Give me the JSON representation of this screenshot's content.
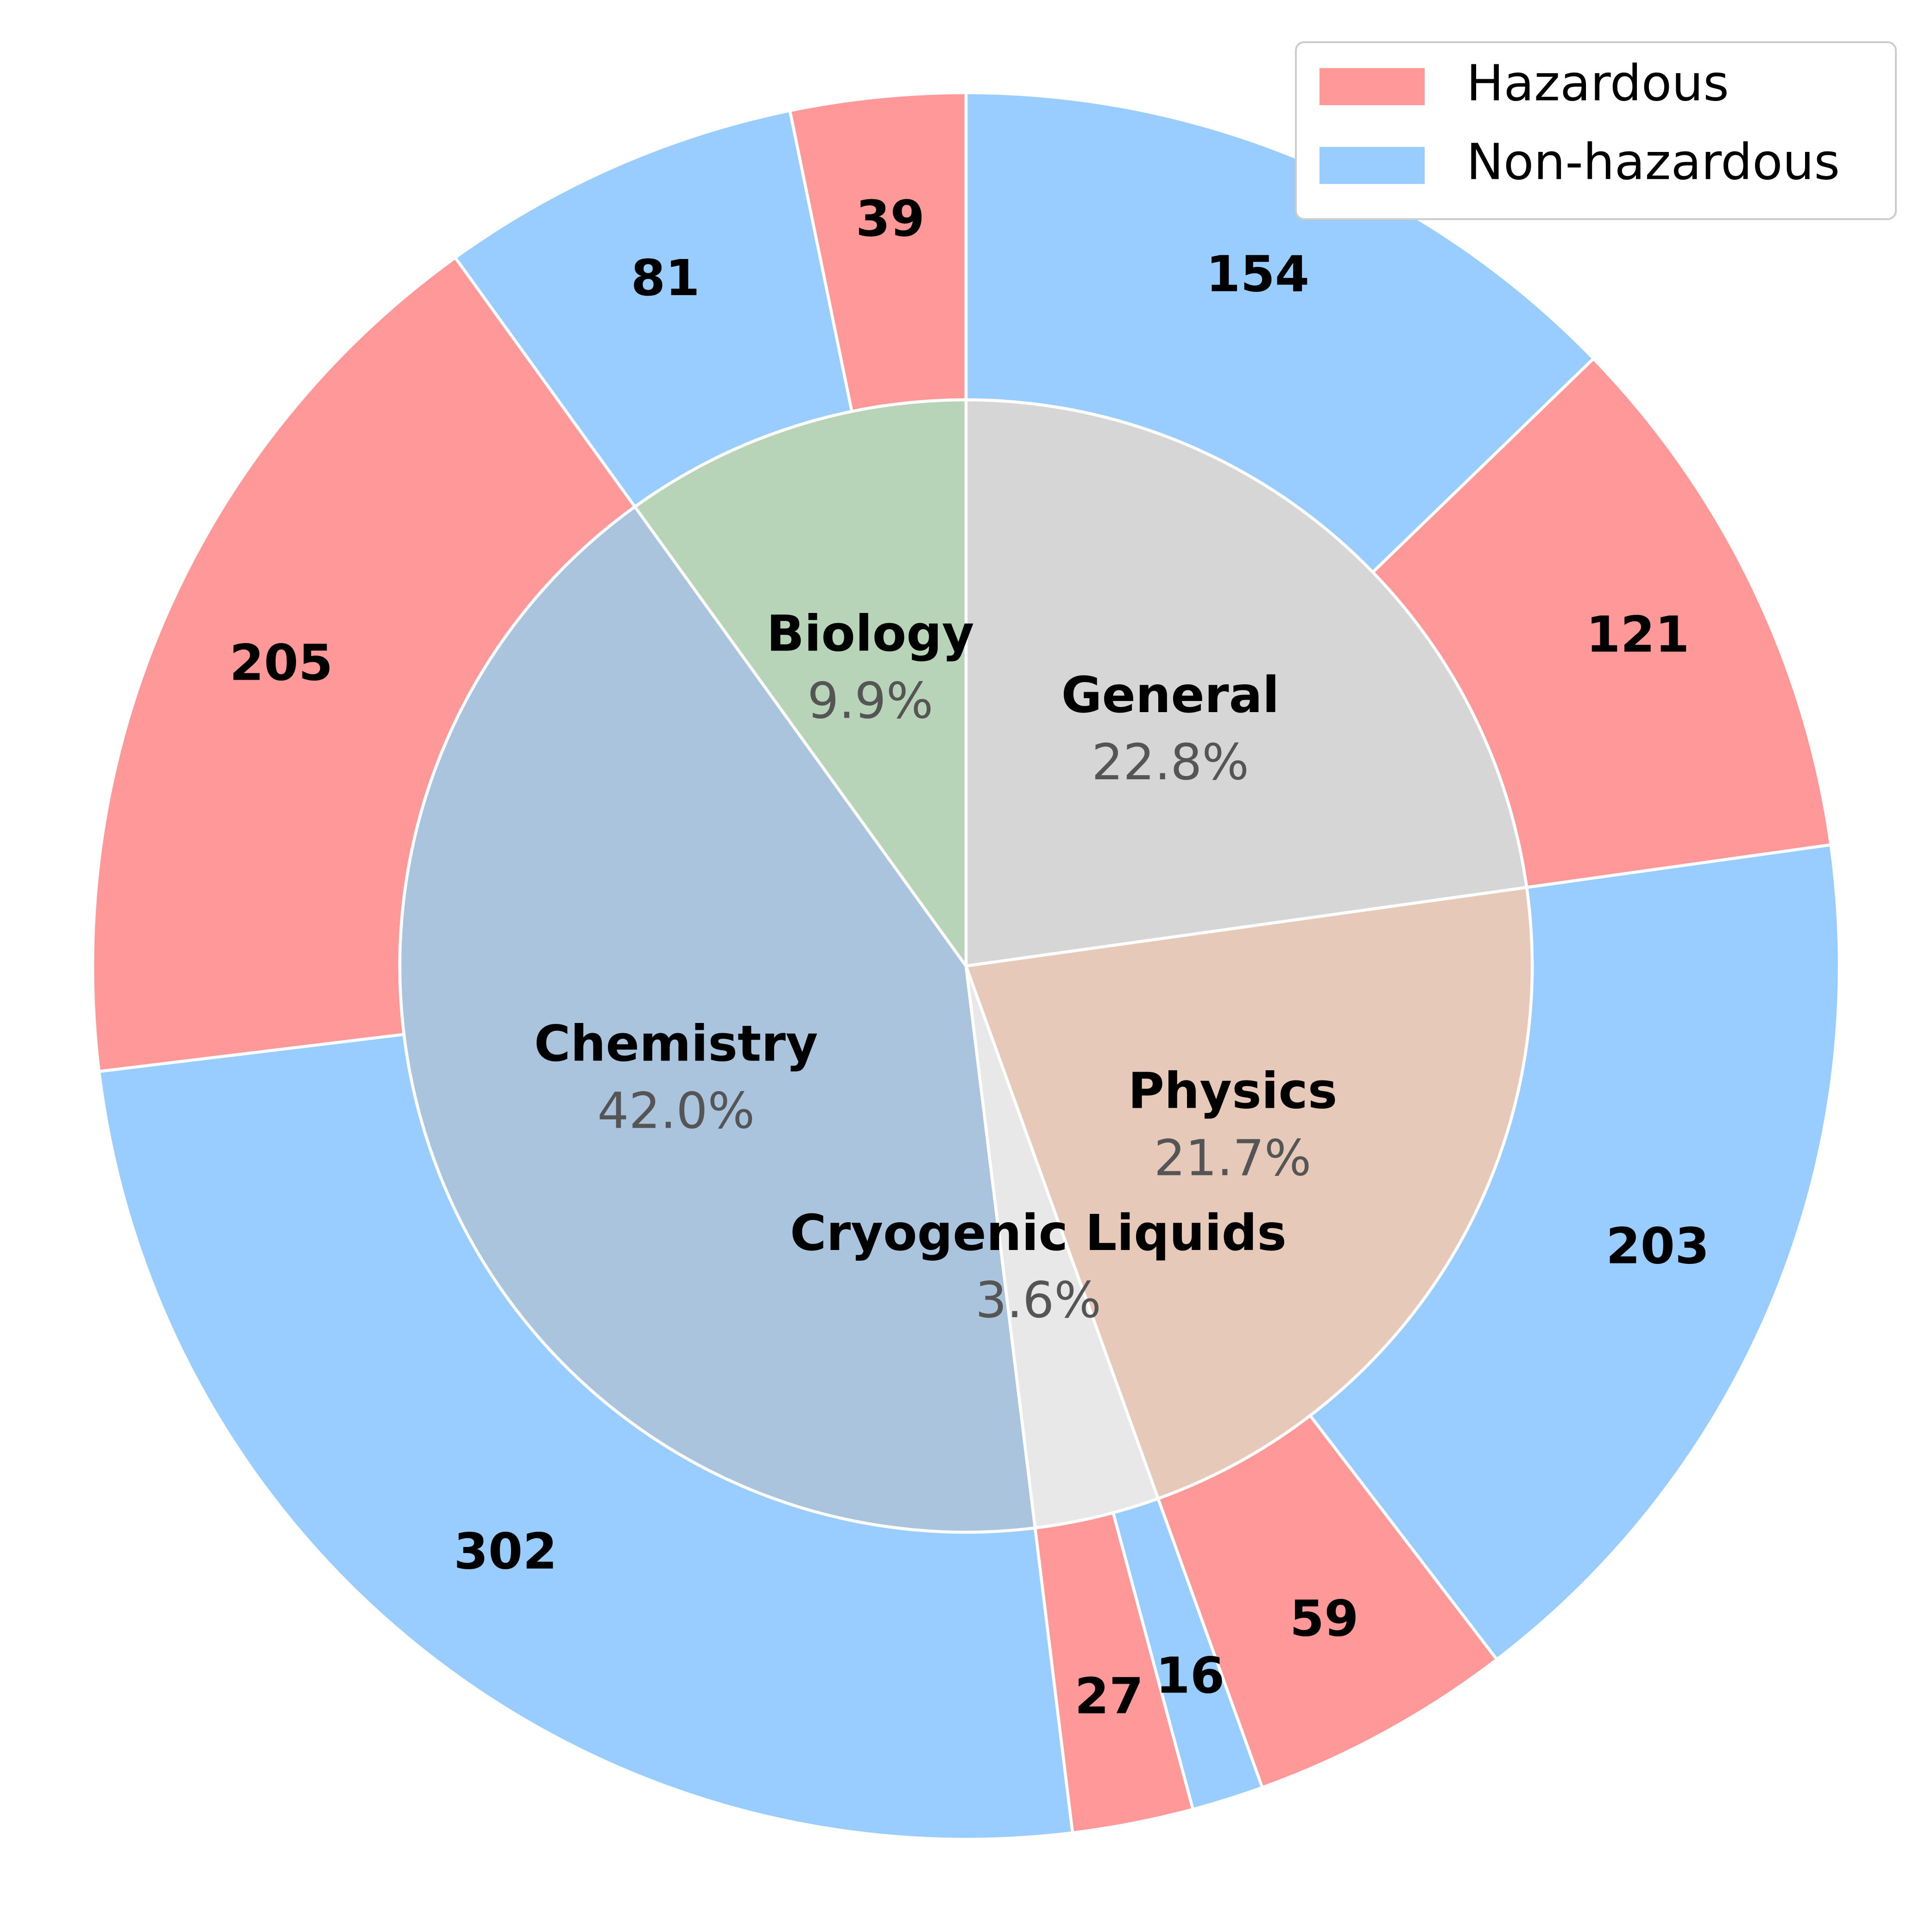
{
  "chart_data": {
    "type": "pie",
    "subtype": "nested-donut",
    "title": "",
    "start_angle_deg": 90,
    "direction": "clockwise",
    "inner_ring": {
      "categories": [
        "General",
        "Physics",
        "Cryogenic Liquids",
        "Chemistry",
        "Biology"
      ],
      "percent_labels": [
        "22.8%",
        "21.7%",
        "3.6%",
        "42.0%",
        "9.9%"
      ],
      "values": [
        275,
        262,
        43,
        507,
        120
      ],
      "colors": [
        "#d6d6d6",
        "#e6c9b8",
        "#e8e8e8",
        "#a9c4dc",
        "#b8d4b8"
      ]
    },
    "outer_ring": {
      "values": [
        154,
        121,
        203,
        59,
        16,
        27,
        302,
        205,
        81,
        39
      ],
      "labels": [
        "154",
        "121",
        "203",
        "59",
        "16",
        "27",
        "302",
        "205",
        "81",
        "39"
      ],
      "types": [
        "Non-hazardous",
        "Hazardous",
        "Non-hazardous",
        "Hazardous",
        "Non-hazardous",
        "Hazardous",
        "Non-hazardous",
        "Hazardous",
        "Non-hazardous",
        "Hazardous"
      ]
    },
    "legend": {
      "position": "top-right",
      "entries": [
        {
          "label": "Hazardous",
          "color": "#ff9999"
        },
        {
          "label": "Non-hazardous",
          "color": "#99ccff"
        }
      ]
    }
  }
}
